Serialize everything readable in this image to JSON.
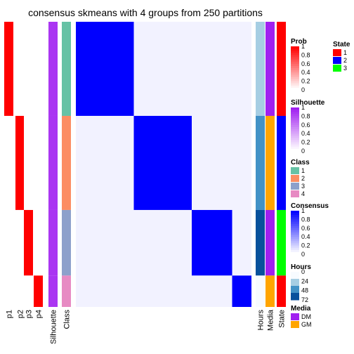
{
  "chart_data": {
    "type": "heatmap",
    "title": "consensus skmeans with 4 groups from 250 partitions",
    "n_groups": 4,
    "group_fractions": [
      0.33,
      0.33,
      0.23,
      0.11
    ],
    "left_columns": [
      "p1",
      "p2",
      "p3",
      "p4",
      "Silhouette",
      "Class"
    ],
    "right_columns": [
      "Hours",
      "Media",
      "State"
    ],
    "prob_columns": [
      "p1",
      "p2",
      "p3",
      "p4"
    ],
    "consensus_within": 1.0,
    "consensus_between": 0.05,
    "silhouette_value": 0.9,
    "legends": [
      {
        "title": "Prob",
        "type": "gradient",
        "ticks": [
          "1",
          "0.8",
          "0.6",
          "0.4",
          "0.2",
          "0"
        ],
        "low": "#ffffff",
        "high": "#ff0000"
      },
      {
        "title": "Silhouette",
        "type": "gradient",
        "ticks": [
          "1",
          "0.8",
          "0.6",
          "0.4",
          "0.2",
          "0"
        ],
        "low": "#ffffff",
        "high": "#a020f0"
      },
      {
        "title": "Class",
        "type": "discrete",
        "labels": [
          "1",
          "2",
          "3",
          "4"
        ],
        "colors": [
          "#66c2a5",
          "#fc8d62",
          "#8da0cb",
          "#e78ac3"
        ]
      },
      {
        "title": "Consensus",
        "type": "gradient",
        "ticks": [
          "1",
          "0.8",
          "0.6",
          "0.4",
          "0.2",
          "0"
        ],
        "low": "#ffffff",
        "high": "#0000ff"
      },
      {
        "title": "Hours",
        "type": "gradient",
        "ticks": [
          "0",
          "24",
          "48",
          "72"
        ],
        "colors": [
          "#f7fbff",
          "#a6cee3",
          "#4292c6",
          "#08519c"
        ]
      },
      {
        "title": "Media",
        "type": "discrete",
        "labels": [
          "DM",
          "GM"
        ],
        "colors": [
          "#a020f0",
          "#ffa500"
        ]
      },
      {
        "title": "State",
        "type": "discrete",
        "labels": [
          "1",
          "2",
          "3"
        ],
        "colors": [
          "#ff0000",
          "#0000ff",
          "#00ff00"
        ]
      }
    ]
  }
}
